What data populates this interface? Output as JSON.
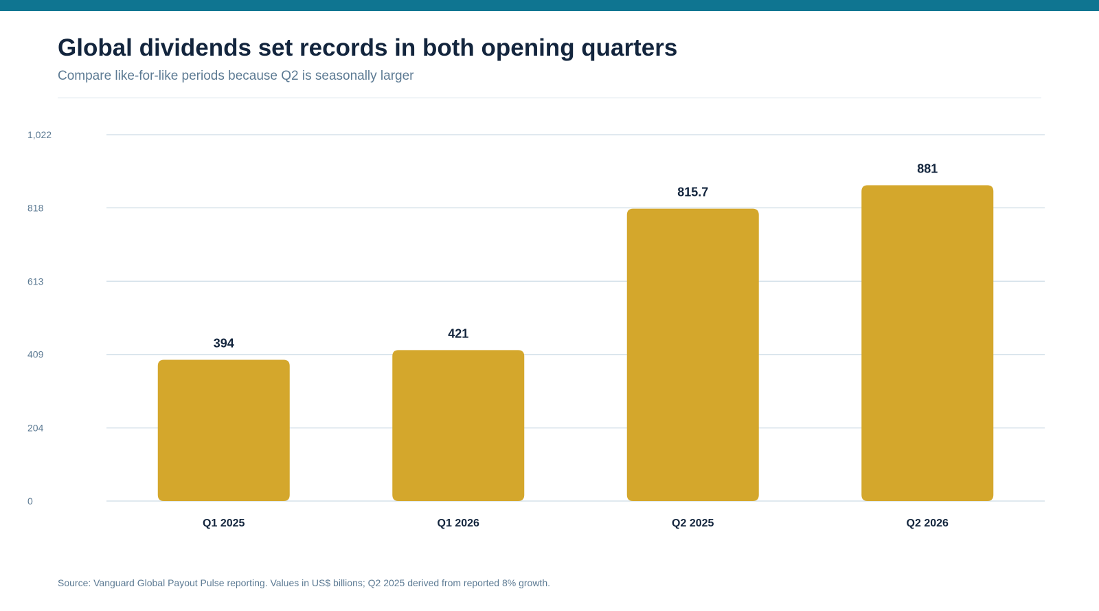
{
  "header": {
    "title": "Global dividends set records in both opening quarters",
    "subtitle": "Compare like-for-like periods because Q2 is seasonally larger"
  },
  "footer": {
    "source": "Source: Vanguard Global Payout Pulse reporting. Values in US$ billions; Q2 2025 derived from reported 8% growth."
  },
  "colors": {
    "accent_bar": "#0f7591",
    "bar": "#d4a72c",
    "gridline": "#d6e2ea",
    "title": "#13253d",
    "muted": "#5c7a93"
  },
  "chart_data": {
    "type": "bar",
    "categories": [
      "Q1 2025",
      "Q1 2026",
      "Q2 2025",
      "Q2 2026"
    ],
    "values": [
      394,
      421,
      815.7,
      881
    ],
    "value_labels": [
      "394",
      "421",
      "815.7",
      "881"
    ],
    "title": "Global dividends set records in both opening quarters",
    "subtitle": "Compare like-for-like periods because Q2 is seasonally larger",
    "xlabel": "",
    "ylabel": "",
    "ylim": [
      0,
      1022
    ],
    "yticks": [
      0,
      204,
      409,
      613,
      818,
      1022
    ],
    "ytick_labels": [
      "0",
      "204",
      "409",
      "613",
      "818",
      "1,022"
    ],
    "grid": true,
    "legend": "none"
  }
}
